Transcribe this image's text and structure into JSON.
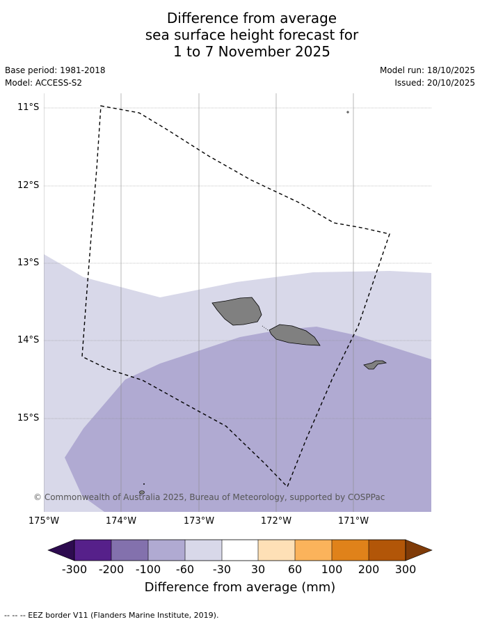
{
  "title": {
    "line1": "Difference from average",
    "line2": "sea surface height forecast for",
    "line3": "1 to 7 November 2025"
  },
  "meta_left": {
    "base_period": "Base period: 1981-2018",
    "model": "Model: ACCESS-S2"
  },
  "meta_right": {
    "model_run": "Model run: 18/10/2025",
    "issued": "Issued: 20/10/2025"
  },
  "map": {
    "lat_labels": [
      "11°S",
      "12°S",
      "13°S",
      "14°S",
      "15°S"
    ],
    "lon_labels": [
      "175°W",
      "174°W",
      "173°W",
      "172°W",
      "171°W"
    ],
    "copyright": "© Commonwealth of Australia 2025, Bureau of Meteorology, supported by COSPPac",
    "colors": {
      "band_neg_60_30": "#d8d8e9",
      "band_neg_100_60": "#b0aad2",
      "land": "#808080",
      "eez_line": "#000000"
    }
  },
  "colorbar": {
    "ticks": [
      "-300",
      "-200",
      "-100",
      "-60",
      "-30",
      "30",
      "60",
      "100",
      "200",
      "300"
    ],
    "title": "Difference from average (mm)",
    "colors": [
      "#2d0b4f",
      "#56208a",
      "#8371ad",
      "#b0aad2",
      "#d8d8e9",
      "#ffffff",
      "#fee0b6",
      "#fbb35b",
      "#e0821a",
      "#b25608",
      "#7f3b08"
    ]
  },
  "footer": "--  --  -- EEZ border V11 (Flanders Marine Institute, 2019)."
}
